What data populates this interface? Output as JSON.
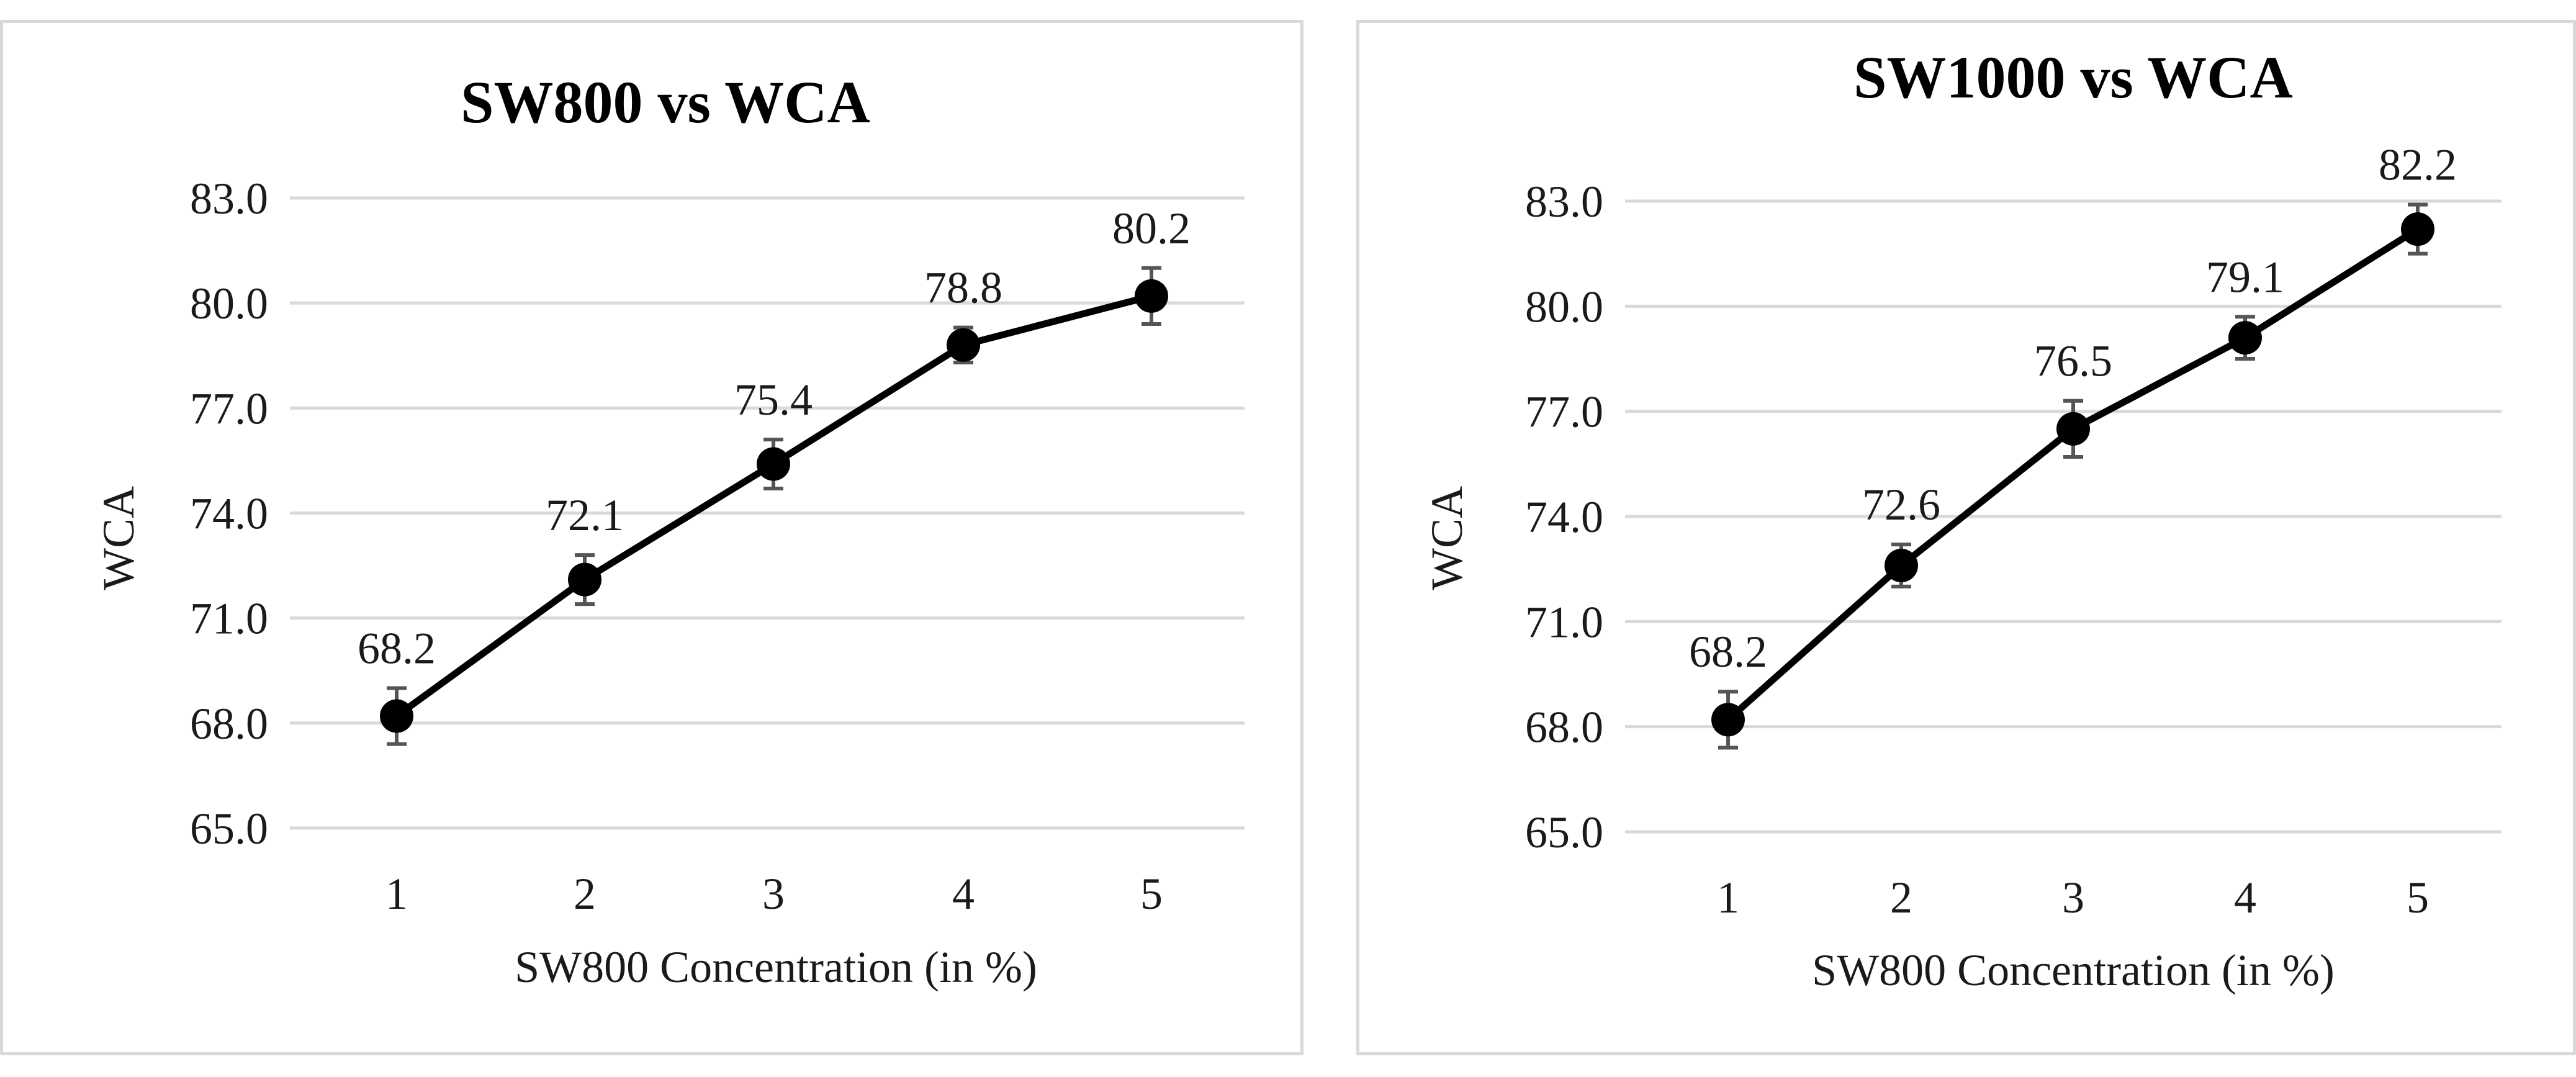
{
  "chart_data": [
    {
      "type": "line",
      "title": "SW800 vs WCA",
      "xlabel": "SW800 Concentration (in %)",
      "ylabel": "WCA",
      "categories": [
        "1",
        "2",
        "3",
        "4",
        "5"
      ],
      "ylim": [
        65.0,
        83.0
      ],
      "yticks": [
        "65.0",
        "68.0",
        "71.0",
        "74.0",
        "77.0",
        "80.0",
        "83.0"
      ],
      "grid": true,
      "series": [
        {
          "name": "WCA",
          "values": [
            68.2,
            72.1,
            75.4,
            78.8,
            80.2
          ],
          "labels": [
            "68.2",
            "72.1",
            "75.4",
            "78.8",
            "80.2"
          ],
          "error": [
            0.8,
            0.7,
            0.7,
            0.5,
            0.8
          ],
          "color": "#000000"
        }
      ]
    },
    {
      "type": "line",
      "title": "SW1000 vs WCA",
      "xlabel": "SW800 Concentration (in %)",
      "ylabel": "WCA",
      "categories": [
        "1",
        "2",
        "3",
        "4",
        "5"
      ],
      "ylim": [
        65.0,
        83.0
      ],
      "yticks": [
        "65.0",
        "68.0",
        "71.0",
        "74.0",
        "77.0",
        "80.0",
        "83.0"
      ],
      "grid": true,
      "series": [
        {
          "name": "WCA",
          "values": [
            68.2,
            72.6,
            76.5,
            79.1,
            82.2
          ],
          "labels": [
            "68.2",
            "72.6",
            "76.5",
            "79.1",
            "82.2"
          ],
          "error": [
            0.8,
            0.6,
            0.8,
            0.6,
            0.7
          ],
          "color": "#000000"
        }
      ]
    }
  ]
}
